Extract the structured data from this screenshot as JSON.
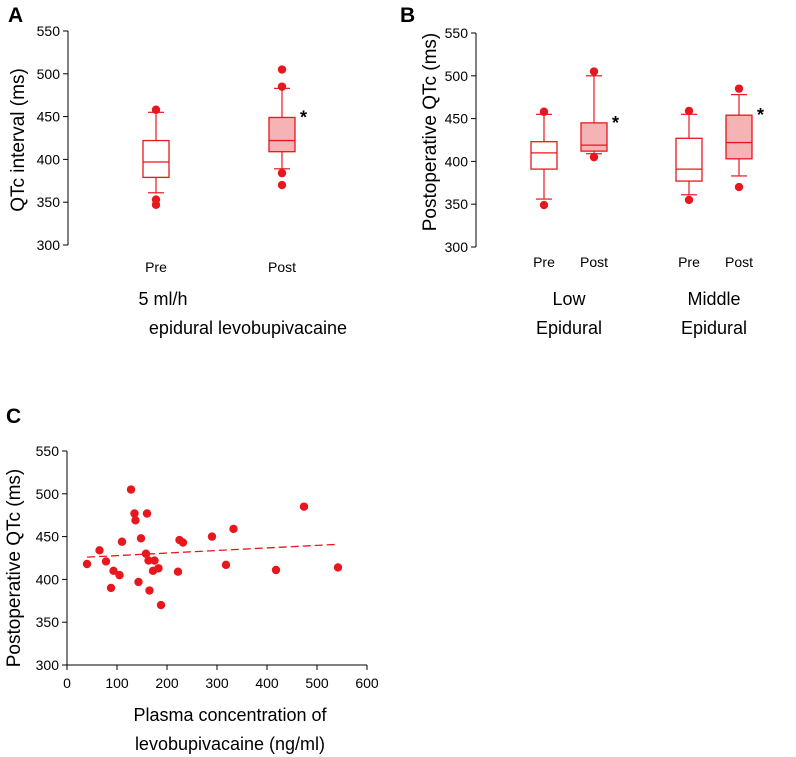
{
  "colors": {
    "accent": "#e8171e",
    "fill": "#f6b3b5",
    "axis": "#000000"
  },
  "chart_data": [
    {
      "type": "box",
      "panel_label": "A",
      "ylabel": "QTc interval (ms)",
      "ylim": [
        300,
        550
      ],
      "yticks": [
        300,
        350,
        400,
        450,
        500,
        550
      ],
      "xlabel_lines": [
        "5 ml/h",
        "epidural levobupivacaine"
      ],
      "groups": [
        {
          "name": "5 ml/h epidural levobupivacaine",
          "boxes": [
            {
              "label": "Pre",
              "filled": false,
              "whisker_low": 361,
              "q1": 379,
              "median": 397,
              "q3": 422,
              "whisker_high": 455,
              "outliers": [
                458,
                353,
                347
              ],
              "star": false
            },
            {
              "label": "Post",
              "filled": true,
              "whisker_low": 389,
              "q1": 409,
              "median": 422,
              "q3": 449,
              "whisker_high": 483,
              "outliers": [
                505,
                485,
                384,
                370
              ],
              "star": true
            }
          ]
        }
      ]
    },
    {
      "type": "box",
      "panel_label": "B",
      "ylabel": "Postoperative QTc (ms)",
      "ylim": [
        300,
        550
      ],
      "yticks": [
        300,
        350,
        400,
        450,
        500,
        550
      ],
      "groups": [
        {
          "name_lines": [
            "Low",
            "Epidural"
          ],
          "boxes": [
            {
              "label": "Pre",
              "filled": false,
              "whisker_low": 356,
              "q1": 391,
              "median": 410,
              "q3": 423,
              "whisker_high": 455,
              "outliers": [
                458,
                349
              ],
              "star": false
            },
            {
              "label": "Post",
              "filled": true,
              "whisker_low": 409,
              "q1": 412,
              "median": 419,
              "q3": 445,
              "whisker_high": 500,
              "outliers": [
                505,
                405
              ],
              "star": true
            }
          ]
        },
        {
          "name_lines": [
            "Middle",
            "Epidural"
          ],
          "boxes": [
            {
              "label": "Pre",
              "filled": false,
              "whisker_low": 361,
              "q1": 377,
              "median": 391,
              "q3": 427,
              "whisker_high": 455,
              "outliers": [
                459,
                355
              ],
              "star": false
            },
            {
              "label": "Post",
              "filled": true,
              "whisker_low": 383,
              "q1": 403,
              "median": 422,
              "q3": 454,
              "whisker_high": 478,
              "outliers": [
                485,
                370
              ],
              "star": true
            }
          ]
        }
      ]
    },
    {
      "type": "scatter",
      "panel_label": "C",
      "ylabel": "Postoperative QTc (ms)",
      "xlabel_lines": [
        "Plasma concentration of",
        "levobupivacaine (ng/ml)"
      ],
      "xlim": [
        0,
        600
      ],
      "ylim": [
        300,
        550
      ],
      "xticks": [
        0,
        100,
        200,
        300,
        400,
        500,
        600
      ],
      "yticks": [
        300,
        350,
        400,
        450,
        500,
        550
      ],
      "points": [
        [
          40,
          418
        ],
        [
          65,
          434
        ],
        [
          78,
          421
        ],
        [
          88,
          390
        ],
        [
          93,
          410
        ],
        [
          105,
          405
        ],
        [
          110,
          444
        ],
        [
          128,
          505
        ],
        [
          135,
          477
        ],
        [
          137,
          469
        ],
        [
          143,
          397
        ],
        [
          148,
          448
        ],
        [
          158,
          430
        ],
        [
          160,
          477
        ],
        [
          163,
          422
        ],
        [
          165,
          387
        ],
        [
          172,
          410
        ],
        [
          175,
          422
        ],
        [
          183,
          413
        ],
        [
          188,
          370
        ],
        [
          222,
          409
        ],
        [
          225,
          446
        ],
        [
          232,
          443
        ],
        [
          290,
          450
        ],
        [
          318,
          417
        ],
        [
          333,
          459
        ],
        [
          418,
          411
        ],
        [
          474,
          485
        ],
        [
          542,
          414
        ]
      ],
      "trendline": {
        "x": [
          40,
          542
        ],
        "y": [
          426,
          441
        ],
        "style": "dashed"
      }
    }
  ],
  "annotations": {
    "significance_marker": "*"
  }
}
